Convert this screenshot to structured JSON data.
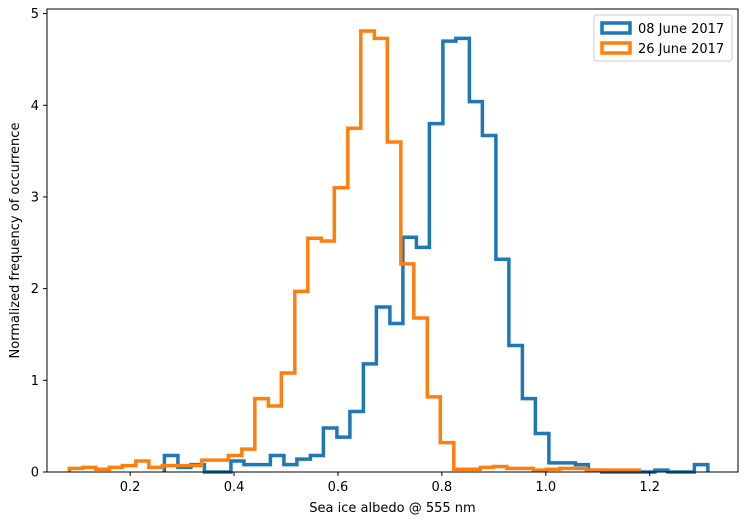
{
  "chart_data": {
    "type": "histogram-step",
    "xlabel": "Sea ice albedo @ 555 nm",
    "ylabel": "Normalized frequency of occurrence",
    "xlim": [
      0.04,
      1.37
    ],
    "ylim": [
      0,
      5.05
    ],
    "xticks": [
      0.2,
      0.4,
      0.6,
      0.8,
      1.0,
      1.2
    ],
    "xtick_labels": [
      "0.2",
      "0.4",
      "0.6",
      "0.8",
      "1.0",
      "1.2"
    ],
    "yticks": [
      0,
      1,
      2,
      3,
      4,
      5
    ],
    "ytick_labels": [
      "0",
      "1",
      "2",
      "3",
      "4",
      "5"
    ],
    "grid": false,
    "legend_position": "top-right",
    "series": [
      {
        "name": "08 June 2017",
        "color": "#1f77b4",
        "x_edges": [
          0.266,
          0.292,
          0.317,
          0.343,
          0.368,
          0.394,
          0.419,
          0.445,
          0.47,
          0.496,
          0.521,
          0.547,
          0.572,
          0.598,
          0.623,
          0.649,
          0.674,
          0.7,
          0.725,
          0.751,
          0.776,
          0.802,
          0.827,
          0.853,
          0.878,
          0.904,
          0.929,
          0.955,
          0.98,
          1.006,
          1.031,
          1.057,
          1.082,
          1.108,
          1.133,
          1.159,
          1.184,
          1.21,
          1.235,
          1.261,
          1.286,
          1.312
        ],
        "values": [
          0.18,
          0.05,
          0.08,
          0.0,
          0.0,
          0.12,
          0.08,
          0.08,
          0.18,
          0.08,
          0.14,
          0.18,
          0.48,
          0.38,
          0.66,
          1.18,
          1.8,
          1.62,
          2.56,
          2.45,
          3.8,
          4.7,
          4.73,
          4.04,
          3.67,
          2.32,
          1.38,
          0.8,
          0.42,
          0.1,
          0.1,
          0.08,
          0.02,
          0.0,
          0.0,
          0.0,
          0.0,
          0.02,
          0.0,
          0.0,
          0.08
        ]
      },
      {
        "name": "26 June 2017",
        "color": "#ff7f0e",
        "x_edges": [
          0.083,
          0.109,
          0.134,
          0.16,
          0.185,
          0.211,
          0.236,
          0.262,
          0.287,
          0.313,
          0.338,
          0.364,
          0.389,
          0.415,
          0.44,
          0.466,
          0.491,
          0.517,
          0.542,
          0.568,
          0.593,
          0.619,
          0.644,
          0.67,
          0.695,
          0.721,
          0.746,
          0.772,
          0.797,
          0.823,
          0.848,
          0.874,
          0.899,
          0.925,
          0.95,
          0.976,
          1.001,
          1.027,
          1.052,
          1.078,
          1.103,
          1.129,
          1.154,
          1.18
        ],
        "values": [
          0.04,
          0.05,
          0.03,
          0.05,
          0.07,
          0.12,
          0.05,
          0.07,
          0.07,
          0.07,
          0.13,
          0.13,
          0.18,
          0.25,
          0.8,
          0.72,
          1.08,
          1.97,
          2.55,
          2.52,
          3.1,
          3.75,
          4.81,
          4.73,
          3.6,
          2.27,
          1.68,
          0.82,
          0.32,
          0.03,
          0.03,
          0.05,
          0.06,
          0.04,
          0.04,
          0.02,
          0.03,
          0.04,
          0.04,
          0.02,
          0.02,
          0.02,
          0.02
        ]
      }
    ]
  }
}
